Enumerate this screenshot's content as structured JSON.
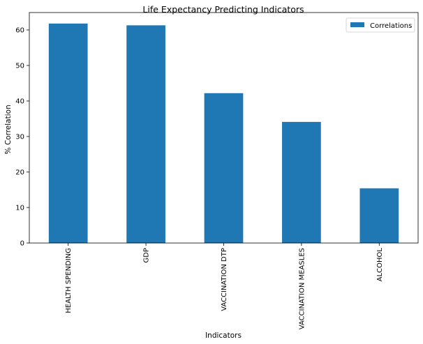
{
  "chart_data": {
    "type": "bar",
    "title": "Life Expectancy Predicting Indicators",
    "xlabel": "Indicators",
    "ylabel": "% Correlation",
    "categories": [
      "HEALTH SPENDING",
      "GDP",
      "VACCINATION DTP",
      "VACCINATION MEASLES",
      "ALCOHOL"
    ],
    "series": [
      {
        "name": "Correlations",
        "values": [
          61.8,
          61.3,
          42.2,
          34.1,
          15.4
        ],
        "color": "#1f77b4"
      }
    ],
    "ylim": [
      0,
      64.9
    ],
    "yticks": [
      "0",
      "10",
      "20",
      "30",
      "40",
      "50",
      "60"
    ],
    "grid": false,
    "legend_position": "top-right"
  }
}
